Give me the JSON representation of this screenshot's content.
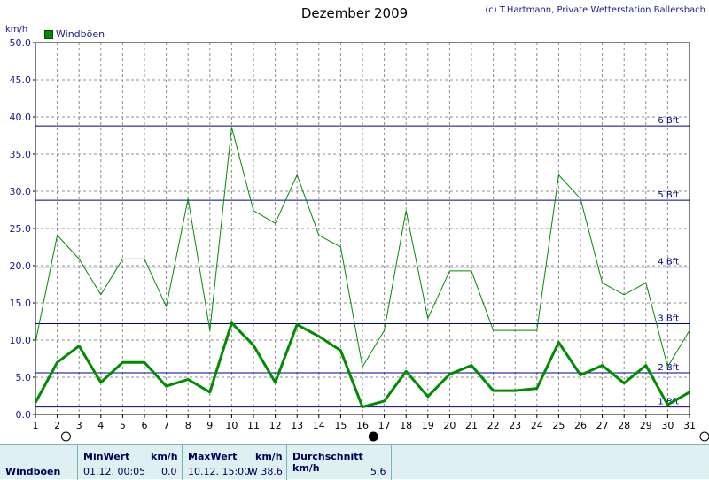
{
  "header": {
    "title": "Dezember 2009",
    "copyright": "(c) T.Hartmann, Private Wetterstation Ballersbach",
    "unit": "km/h"
  },
  "legend": {
    "label": "Windböen",
    "color": "#008c00"
  },
  "chart_data": {
    "type": "line",
    "x": [
      1,
      2,
      3,
      4,
      5,
      6,
      7,
      8,
      9,
      10,
      11,
      12,
      13,
      14,
      15,
      16,
      17,
      18,
      19,
      20,
      21,
      22,
      23,
      24,
      25,
      26,
      27,
      28,
      29,
      30,
      31
    ],
    "xlim": [
      1,
      31
    ],
    "ylim": [
      0,
      50
    ],
    "ylabel": "km/h",
    "yticks": [
      "0.0",
      "5.0",
      "10.0",
      "15.0",
      "20.0",
      "25.0",
      "30.0",
      "35.0",
      "40.0",
      "45.0",
      "50.0"
    ],
    "grid": true,
    "legend_position": "top-left",
    "series": [
      {
        "name": "Windböen",
        "role": "max",
        "color": "#008c00",
        "width": 1,
        "values": [
          9.7,
          24.1,
          20.9,
          16.1,
          20.9,
          20.9,
          14.5,
          29,
          11.3,
          38.6,
          27.4,
          25.7,
          32.2,
          24.1,
          22.5,
          6.4,
          11.3,
          27.4,
          12.9,
          19.3,
          19.3,
          11.3,
          11.3,
          11.3,
          32.2,
          29,
          17.7,
          16.1,
          17.7,
          6.4,
          11.3
        ]
      },
      {
        "role": "avg",
        "color": "#008c00",
        "width": 3,
        "values": [
          1.6,
          7,
          9.2,
          4.3,
          7,
          7,
          3.8,
          4.7,
          3,
          12.3,
          9.3,
          4.3,
          12.1,
          10.5,
          8.6,
          1,
          1.8,
          5.8,
          2.4,
          5.4,
          6.6,
          3.2,
          3.2,
          3.5,
          9.7,
          5.3,
          6.6,
          4.2,
          6.6,
          1.3,
          3
        ]
      }
    ],
    "reference_lines": [
      {
        "value": 1,
        "label": "1 Bft"
      },
      {
        "value": 5.6,
        "label": "2 Bft"
      },
      {
        "value": 12.2,
        "label": "3 Bft"
      },
      {
        "value": 19.8,
        "label": "4 Bft"
      },
      {
        "value": 28.8,
        "label": "5 Bft"
      },
      {
        "value": 38.8,
        "label": "6 Bft"
      }
    ],
    "reference_color": "#00008c",
    "moon_phases": [
      {
        "day": 2.4,
        "phase": "full"
      },
      {
        "day": 16.5,
        "phase": "new"
      },
      {
        "day": 31.8,
        "phase": "full"
      }
    ]
  },
  "footer": {
    "row_label": "Windböen",
    "min": {
      "header": "MinWert",
      "unit": "km/h",
      "value": "01.12.  00:05",
      "number": "0.0"
    },
    "max": {
      "header": "MaxWert",
      "unit": "km/h",
      "value": "10.12.  15:00",
      "number": "W 38.6"
    },
    "avg": {
      "header": "Durchschnitt km/h",
      "number": "5.6"
    }
  }
}
